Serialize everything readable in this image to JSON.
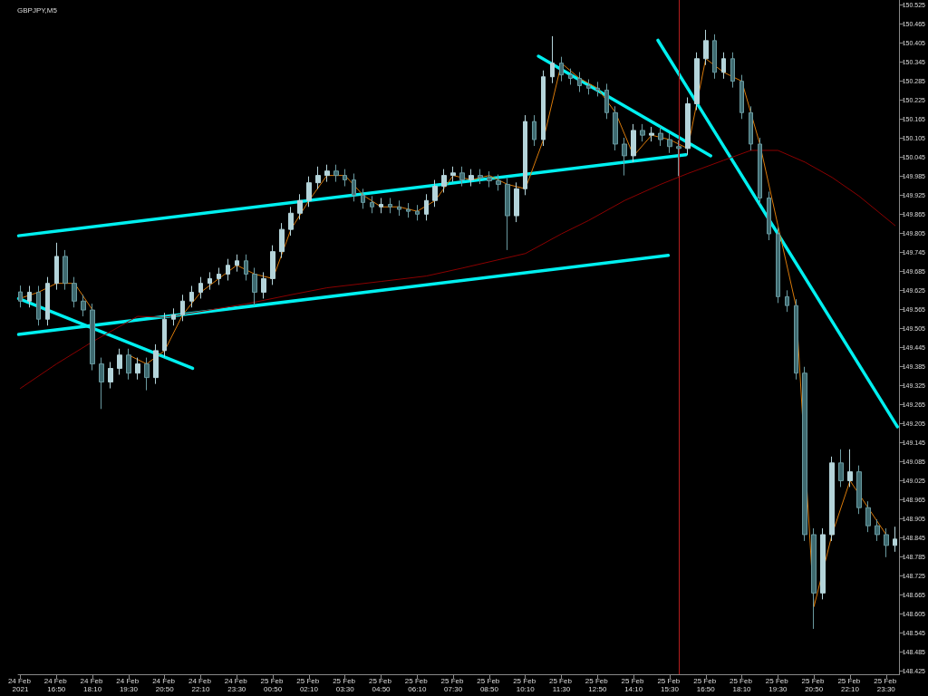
{
  "chart_data": {
    "type": "candlestick",
    "title": "GBPJPY,M5",
    "x": [
      "2021-02-24T15:30",
      "2021-02-24T15:50",
      "2021-02-24T16:10",
      "2021-02-24T16:30",
      "2021-02-24T16:50",
      "2021-02-24T17:10",
      "2021-02-24T17:30",
      "2021-02-24T17:50",
      "2021-02-24T18:10",
      "2021-02-24T18:30",
      "2021-02-24T18:50",
      "2021-02-24T19:10",
      "2021-02-24T19:30",
      "2021-02-24T19:50",
      "2021-02-24T20:10",
      "2021-02-24T20:30",
      "2021-02-24T20:50",
      "2021-02-24T21:10",
      "2021-02-24T21:30",
      "2021-02-24T21:50",
      "2021-02-24T22:10",
      "2021-02-24T22:30",
      "2021-02-24T22:50",
      "2021-02-24T23:10",
      "2021-02-24T23:30",
      "2021-02-24T23:50",
      "2021-02-25T00:10",
      "2021-02-25T00:30",
      "2021-02-25T00:50",
      "2021-02-25T01:10",
      "2021-02-25T01:30",
      "2021-02-25T01:50",
      "2021-02-25T02:10",
      "2021-02-25T02:30",
      "2021-02-25T02:50",
      "2021-02-25T03:10",
      "2021-02-25T03:30",
      "2021-02-25T03:50",
      "2021-02-25T04:10",
      "2021-02-25T04:30",
      "2021-02-25T04:50",
      "2021-02-25T05:10",
      "2021-02-25T05:30",
      "2021-02-25T05:50",
      "2021-02-25T06:10",
      "2021-02-25T06:30",
      "2021-02-25T06:50",
      "2021-02-25T07:10",
      "2021-02-25T07:30",
      "2021-02-25T07:50",
      "2021-02-25T08:10",
      "2021-02-25T08:30",
      "2021-02-25T08:50",
      "2021-02-25T09:10",
      "2021-02-25T09:30",
      "2021-02-25T09:50",
      "2021-02-25T10:10",
      "2021-02-25T10:30",
      "2021-02-25T10:50",
      "2021-02-25T11:10",
      "2021-02-25T11:30",
      "2021-02-25T11:50",
      "2021-02-25T12:10",
      "2021-02-25T12:30",
      "2021-02-25T12:50",
      "2021-02-25T13:10",
      "2021-02-25T13:30",
      "2021-02-25T13:50",
      "2021-02-25T14:10",
      "2021-02-25T14:30",
      "2021-02-25T14:50",
      "2021-02-25T15:10",
      "2021-02-25T15:30",
      "2021-02-25T15:50",
      "2021-02-25T16:10",
      "2021-02-25T16:30",
      "2021-02-25T16:50",
      "2021-02-25T17:10",
      "2021-02-25T17:30",
      "2021-02-25T17:50",
      "2021-02-25T18:10",
      "2021-02-25T18:30",
      "2021-02-25T18:50",
      "2021-02-25T19:10",
      "2021-02-25T19:30",
      "2021-02-25T19:50",
      "2021-02-25T20:10",
      "2021-02-25T20:30",
      "2021-02-25T20:50",
      "2021-02-25T21:10",
      "2021-02-25T21:30",
      "2021-02-25T21:50",
      "2021-02-25T22:10",
      "2021-02-25T22:30",
      "2021-02-25T22:50",
      "2021-02-25T23:10",
      "2021-02-25T23:30",
      "2021-02-25T23:50"
    ],
    "ohlc": [
      [
        149.62,
        149.64,
        149.571,
        149.591
      ],
      [
        149.591,
        149.639,
        149.571,
        149.619
      ],
      [
        149.619,
        149.639,
        149.514,
        149.534
      ],
      [
        149.534,
        149.667,
        149.514,
        149.647
      ],
      [
        149.647,
        149.775,
        149.627,
        149.732
      ],
      [
        149.732,
        149.752,
        149.627,
        149.647
      ],
      [
        149.647,
        149.667,
        149.571,
        149.591
      ],
      [
        149.591,
        149.611,
        149.543,
        149.563
      ],
      [
        149.563,
        149.583,
        149.373,
        149.393
      ],
      [
        149.393,
        149.413,
        149.251,
        149.336
      ],
      [
        149.336,
        149.399,
        149.316,
        149.379
      ],
      [
        149.379,
        149.441,
        149.359,
        149.421
      ],
      [
        149.421,
        149.441,
        149.344,
        149.364
      ],
      [
        149.364,
        149.413,
        149.344,
        149.393
      ],
      [
        149.393,
        149.413,
        149.31,
        149.35
      ],
      [
        149.35,
        149.455,
        149.33,
        149.435
      ],
      [
        149.435,
        149.554,
        149.415,
        149.534
      ],
      [
        149.534,
        149.568,
        149.514,
        149.548
      ],
      [
        149.548,
        149.611,
        149.528,
        149.591
      ],
      [
        149.591,
        149.639,
        149.571,
        149.619
      ],
      [
        149.619,
        149.667,
        149.599,
        149.647
      ],
      [
        149.647,
        149.682,
        149.627,
        149.662
      ],
      [
        149.662,
        149.696,
        149.642,
        149.676
      ],
      [
        149.676,
        149.724,
        149.656,
        149.704
      ],
      [
        149.704,
        149.738,
        149.684,
        149.718
      ],
      [
        149.718,
        149.738,
        149.656,
        149.676
      ],
      [
        149.676,
        149.696,
        149.577,
        149.619
      ],
      [
        149.619,
        149.682,
        149.599,
        149.662
      ],
      [
        149.662,
        149.767,
        149.642,
        149.747
      ],
      [
        149.747,
        149.837,
        149.727,
        149.817
      ],
      [
        149.817,
        149.888,
        149.797,
        149.868
      ],
      [
        149.868,
        149.928,
        149.848,
        149.908
      ],
      [
        149.908,
        149.984,
        149.888,
        149.964
      ],
      [
        149.964,
        150.015,
        149.944,
        149.987
      ],
      [
        149.987,
        150.021,
        149.967,
        150.001
      ],
      [
        150.001,
        150.021,
        149.967,
        149.987
      ],
      [
        149.987,
        150.007,
        149.953,
        149.973
      ],
      [
        149.973,
        149.993,
        149.905,
        149.925
      ],
      [
        149.925,
        149.945,
        149.882,
        149.902
      ],
      [
        149.902,
        149.922,
        149.868,
        149.888
      ],
      [
        149.888,
        149.916,
        149.868,
        149.896
      ],
      [
        149.896,
        149.916,
        149.868,
        149.888
      ],
      [
        149.888,
        149.908,
        149.86,
        149.88
      ],
      [
        149.88,
        149.9,
        149.854,
        149.874
      ],
      [
        149.874,
        149.894,
        149.845,
        149.865
      ],
      [
        149.865,
        149.928,
        149.845,
        149.908
      ],
      [
        149.908,
        149.973,
        149.888,
        149.953
      ],
      [
        149.953,
        150.007,
        149.933,
        149.987
      ],
      [
        149.987,
        150.015,
        149.967,
        149.995
      ],
      [
        149.995,
        150.015,
        149.953,
        149.973
      ],
      [
        149.973,
        150.007,
        149.953,
        149.987
      ],
      [
        149.987,
        150.007,
        149.96,
        149.98
      ],
      [
        149.98,
        150.0,
        149.95,
        149.97
      ],
      [
        149.97,
        149.99,
        149.939,
        149.959
      ],
      [
        149.959,
        149.979,
        149.752,
        149.86
      ],
      [
        149.86,
        149.965,
        149.84,
        149.945
      ],
      [
        149.945,
        150.177,
        149.925,
        150.157
      ],
      [
        150.157,
        150.177,
        150.08,
        150.1
      ],
      [
        150.1,
        150.318,
        150.08,
        150.298
      ],
      [
        150.298,
        150.426,
        150.278,
        150.341
      ],
      [
        150.341,
        150.361,
        150.284,
        150.304
      ],
      [
        150.304,
        150.324,
        150.273,
        150.293
      ],
      [
        150.293,
        150.313,
        150.25,
        150.27
      ],
      [
        150.27,
        150.29,
        150.242,
        150.262
      ],
      [
        150.262,
        150.282,
        150.236,
        150.256
      ],
      [
        150.256,
        150.276,
        150.165,
        150.185
      ],
      [
        150.185,
        150.205,
        150.066,
        150.086
      ],
      [
        150.086,
        150.106,
        149.987,
        150.049
      ],
      [
        150.049,
        150.149,
        150.029,
        150.129
      ],
      [
        150.129,
        150.149,
        150.094,
        150.114
      ],
      [
        150.114,
        150.14,
        150.094,
        150.12
      ],
      [
        150.12,
        150.14,
        150.08,
        150.1
      ],
      [
        150.1,
        150.12,
        150.058,
        150.078
      ],
      [
        150.078,
        150.098,
        149.985,
        150.072
      ],
      [
        150.072,
        150.233,
        150.052,
        150.213
      ],
      [
        150.213,
        150.375,
        150.193,
        150.355
      ],
      [
        150.355,
        150.446,
        150.335,
        150.412
      ],
      [
        150.412,
        150.432,
        150.292,
        150.312
      ],
      [
        150.312,
        150.375,
        150.292,
        150.355
      ],
      [
        150.355,
        150.375,
        150.264,
        150.284
      ],
      [
        150.284,
        150.304,
        150.165,
        150.185
      ],
      [
        150.185,
        150.205,
        150.066,
        150.086
      ],
      [
        150.086,
        150.106,
        149.896,
        149.916
      ],
      [
        149.916,
        149.936,
        149.783,
        149.803
      ],
      [
        149.803,
        149.823,
        149.585,
        149.605
      ],
      [
        149.605,
        149.625,
        149.557,
        149.577
      ],
      [
        149.577,
        149.597,
        149.344,
        149.364
      ],
      [
        149.364,
        149.384,
        148.835,
        148.855
      ],
      [
        148.855,
        148.875,
        148.558,
        148.671
      ],
      [
        148.671,
        148.875,
        148.651,
        148.855
      ],
      [
        148.855,
        149.101,
        148.835,
        149.081
      ],
      [
        149.081,
        149.124,
        149.005,
        149.025
      ],
      [
        149.025,
        149.124,
        149.005,
        149.053
      ],
      [
        149.053,
        149.073,
        148.92,
        148.94
      ],
      [
        148.94,
        148.96,
        148.863,
        148.883
      ],
      [
        148.883,
        148.903,
        148.835,
        148.855
      ],
      [
        148.855,
        148.875,
        148.784,
        148.821
      ],
      [
        148.821,
        148.88,
        148.801,
        148.841
      ]
    ],
    "series": [
      {
        "type": "line",
        "color": "#d97a0a",
        "x": [
          "2021-02-24T15:30",
          "2021-02-24T16:10",
          "2021-02-24T16:50",
          "2021-02-24T17:30",
          "2021-02-24T18:10",
          "2021-02-24T18:50",
          "2021-02-24T19:30",
          "2021-02-24T20:10",
          "2021-02-24T20:50",
          "2021-02-24T21:30",
          "2021-02-24T22:10",
          "2021-02-24T22:50",
          "2021-02-24T23:30",
          "2021-02-25T00:10",
          "2021-02-25T00:50",
          "2021-02-25T01:30",
          "2021-02-25T02:10",
          "2021-02-25T02:50",
          "2021-02-25T03:30",
          "2021-02-25T04:10",
          "2021-02-25T04:50",
          "2021-02-25T05:30",
          "2021-02-25T06:10",
          "2021-02-25T06:50",
          "2021-02-25T07:30",
          "2021-02-25T08:10",
          "2021-02-25T08:50",
          "2021-02-25T09:30",
          "2021-02-25T10:10",
          "2021-02-25T10:50",
          "2021-02-25T11:30",
          "2021-02-25T12:10",
          "2021-02-25T12:50",
          "2021-02-25T13:30",
          "2021-02-25T14:10",
          "2021-02-25T14:50",
          "2021-02-25T15:30",
          "2021-02-25T16:10",
          "2021-02-25T16:50",
          "2021-02-25T17:30",
          "2021-02-25T18:10",
          "2021-02-25T18:50",
          "2021-02-25T19:30",
          "2021-02-25T20:10",
          "2021-02-25T20:50",
          "2021-02-25T21:30",
          "2021-02-25T22:10",
          "2021-02-25T22:50",
          "2021-02-25T23:30"
        ],
        "values": [
          149.6,
          149.619,
          149.647,
          149.647,
          149.563,
          null,
          149.421,
          149.393,
          149.435,
          149.548,
          149.619,
          149.662,
          149.704,
          149.676,
          149.662,
          149.817,
          149.908,
          149.987,
          149.987,
          149.925,
          149.888,
          149.888,
          149.874,
          149.908,
          149.987,
          149.973,
          149.987,
          149.959,
          149.945,
          150.1,
          150.341,
          150.293,
          150.262,
          150.185,
          150.049,
          150.114,
          150.1,
          150.072,
          150.355,
          150.312,
          150.284,
          150.086,
          149.83,
          149.577,
          148.628,
          148.855,
          149.025,
          148.94,
          148.855
        ]
      },
      {
        "type": "line",
        "color": "#8b0000",
        "x": [
          "2021-02-24T15:30",
          "2021-02-24T16:50",
          "2021-02-24T18:10",
          "2021-02-24T19:50",
          "2021-02-24T20:50",
          "2021-02-24T22:30",
          "2021-02-24T23:50",
          "2021-02-25T01:30",
          "2021-02-25T02:50",
          "2021-02-25T04:50",
          "2021-02-25T06:30",
          "2021-02-25T07:50",
          "2021-02-25T10:10",
          "2021-02-25T11:30",
          "2021-02-25T12:30",
          "2021-02-25T13:50",
          "2021-02-25T15:10",
          "2021-02-25T16:10",
          "2021-02-25T17:30",
          "2021-02-25T18:30",
          "2021-02-25T19:30",
          "2021-02-25T20:30",
          "2021-02-25T21:30",
          "2021-02-25T22:30",
          "2021-02-25T23:50"
        ],
        "values": [
          149.316,
          149.393,
          149.463,
          149.543,
          149.54,
          149.563,
          149.582,
          149.611,
          149.633,
          149.653,
          149.67,
          149.695,
          149.741,
          149.803,
          149.845,
          149.908,
          149.959,
          149.993,
          150.035,
          150.066,
          150.066,
          150.029,
          149.981,
          149.922,
          149.829
        ]
      },
      {
        "type": "line",
        "color": "#00f0f0",
        "x": [
          "2021-02-24T15:26",
          "2021-02-25T16:06"
        ],
        "values": [
          149.797,
          150.052
        ]
      },
      {
        "type": "line",
        "color": "#00f0f0",
        "x": [
          "2021-02-24T15:26",
          "2021-02-25T15:27"
        ],
        "values": [
          149.486,
          149.735
        ]
      },
      {
        "type": "line",
        "color": "#00f0f0",
        "x": [
          "2021-02-24T15:26",
          "2021-02-24T21:52"
        ],
        "values": [
          149.599,
          149.379
        ]
      },
      {
        "type": "line",
        "color": "#00f0f0",
        "x": [
          "2021-02-25T10:39",
          "2021-02-25T17:01"
        ],
        "values": [
          150.363,
          150.049
        ]
      },
      {
        "type": "line",
        "color": "#00f0f0",
        "x": [
          "2021-02-25T15:04",
          "2021-02-25T23:55"
        ],
        "values": [
          150.413,
          149.195
        ]
      }
    ],
    "ref_lines": [
      {
        "axis": "x",
        "value": "2021-02-25T15:50",
        "color": "#b41e1e"
      }
    ],
    "xlim": [
      "2021-02-24T15:25",
      "2021-02-26T00:00"
    ],
    "xticks": [
      {
        "value": "2021-02-24T15:30",
        "label": "24 Feb 2021"
      },
      {
        "value": "2021-02-24T16:50",
        "label": "24 Feb 16:50"
      },
      {
        "value": "2021-02-24T18:10",
        "label": "24 Feb 18:10"
      },
      {
        "value": "2021-02-24T19:30",
        "label": "24 Feb 19:30"
      },
      {
        "value": "2021-02-24T20:50",
        "label": "24 Feb 20:50"
      },
      {
        "value": "2021-02-24T22:10",
        "label": "24 Feb 22:10"
      },
      {
        "value": "2021-02-24T23:30",
        "label": "24 Feb 23:30"
      },
      {
        "value": "2021-02-25T00:50",
        "label": "25 Feb 00:50"
      },
      {
        "value": "2021-02-25T02:10",
        "label": "25 Feb 02:10"
      },
      {
        "value": "2021-02-25T03:30",
        "label": "25 Feb 03:30"
      },
      {
        "value": "2021-02-25T04:50",
        "label": "25 Feb 04:50"
      },
      {
        "value": "2021-02-25T06:10",
        "label": "25 Feb 06:10"
      },
      {
        "value": "2021-02-25T07:30",
        "label": "25 Feb 07:30"
      },
      {
        "value": "2021-02-25T08:50",
        "label": "25 Feb 08:50"
      },
      {
        "value": "2021-02-25T10:10",
        "label": "25 Feb 10:10"
      },
      {
        "value": "2021-02-25T11:30",
        "label": "25 Feb 11:30"
      },
      {
        "value": "2021-02-25T12:50",
        "label": "25 Feb 12:50"
      },
      {
        "value": "2021-02-25T14:10",
        "label": "25 Feb 14:10"
      },
      {
        "value": "2021-02-25T15:30",
        "label": "25 Feb 15:30"
      },
      {
        "value": "2021-02-25T16:50",
        "label": "25 Feb 16:50"
      },
      {
        "value": "2021-02-25T18:10",
        "label": "25 Feb 18:10"
      },
      {
        "value": "2021-02-25T19:30",
        "label": "25 Feb 19:30"
      },
      {
        "value": "2021-02-25T20:50",
        "label": "25 Feb 20:50"
      },
      {
        "value": "2021-02-25T22:10",
        "label": "25 Feb 22:10"
      },
      {
        "value": "2021-02-25T23:30",
        "label": "25 Feb 23:30"
      }
    ],
    "ylim": [
      148.415,
      150.54
    ],
    "yticks": [
      148.425,
      148.485,
      148.545,
      148.605,
      148.665,
      148.725,
      148.785,
      148.845,
      148.905,
      148.965,
      149.025,
      149.085,
      149.145,
      149.205,
      149.265,
      149.325,
      149.385,
      149.445,
      149.505,
      149.565,
      149.625,
      149.685,
      149.745,
      149.805,
      149.865,
      149.925,
      149.985,
      150.045,
      150.105,
      150.165,
      150.225,
      150.285,
      150.345,
      150.405,
      150.465,
      150.525
    ]
  }
}
